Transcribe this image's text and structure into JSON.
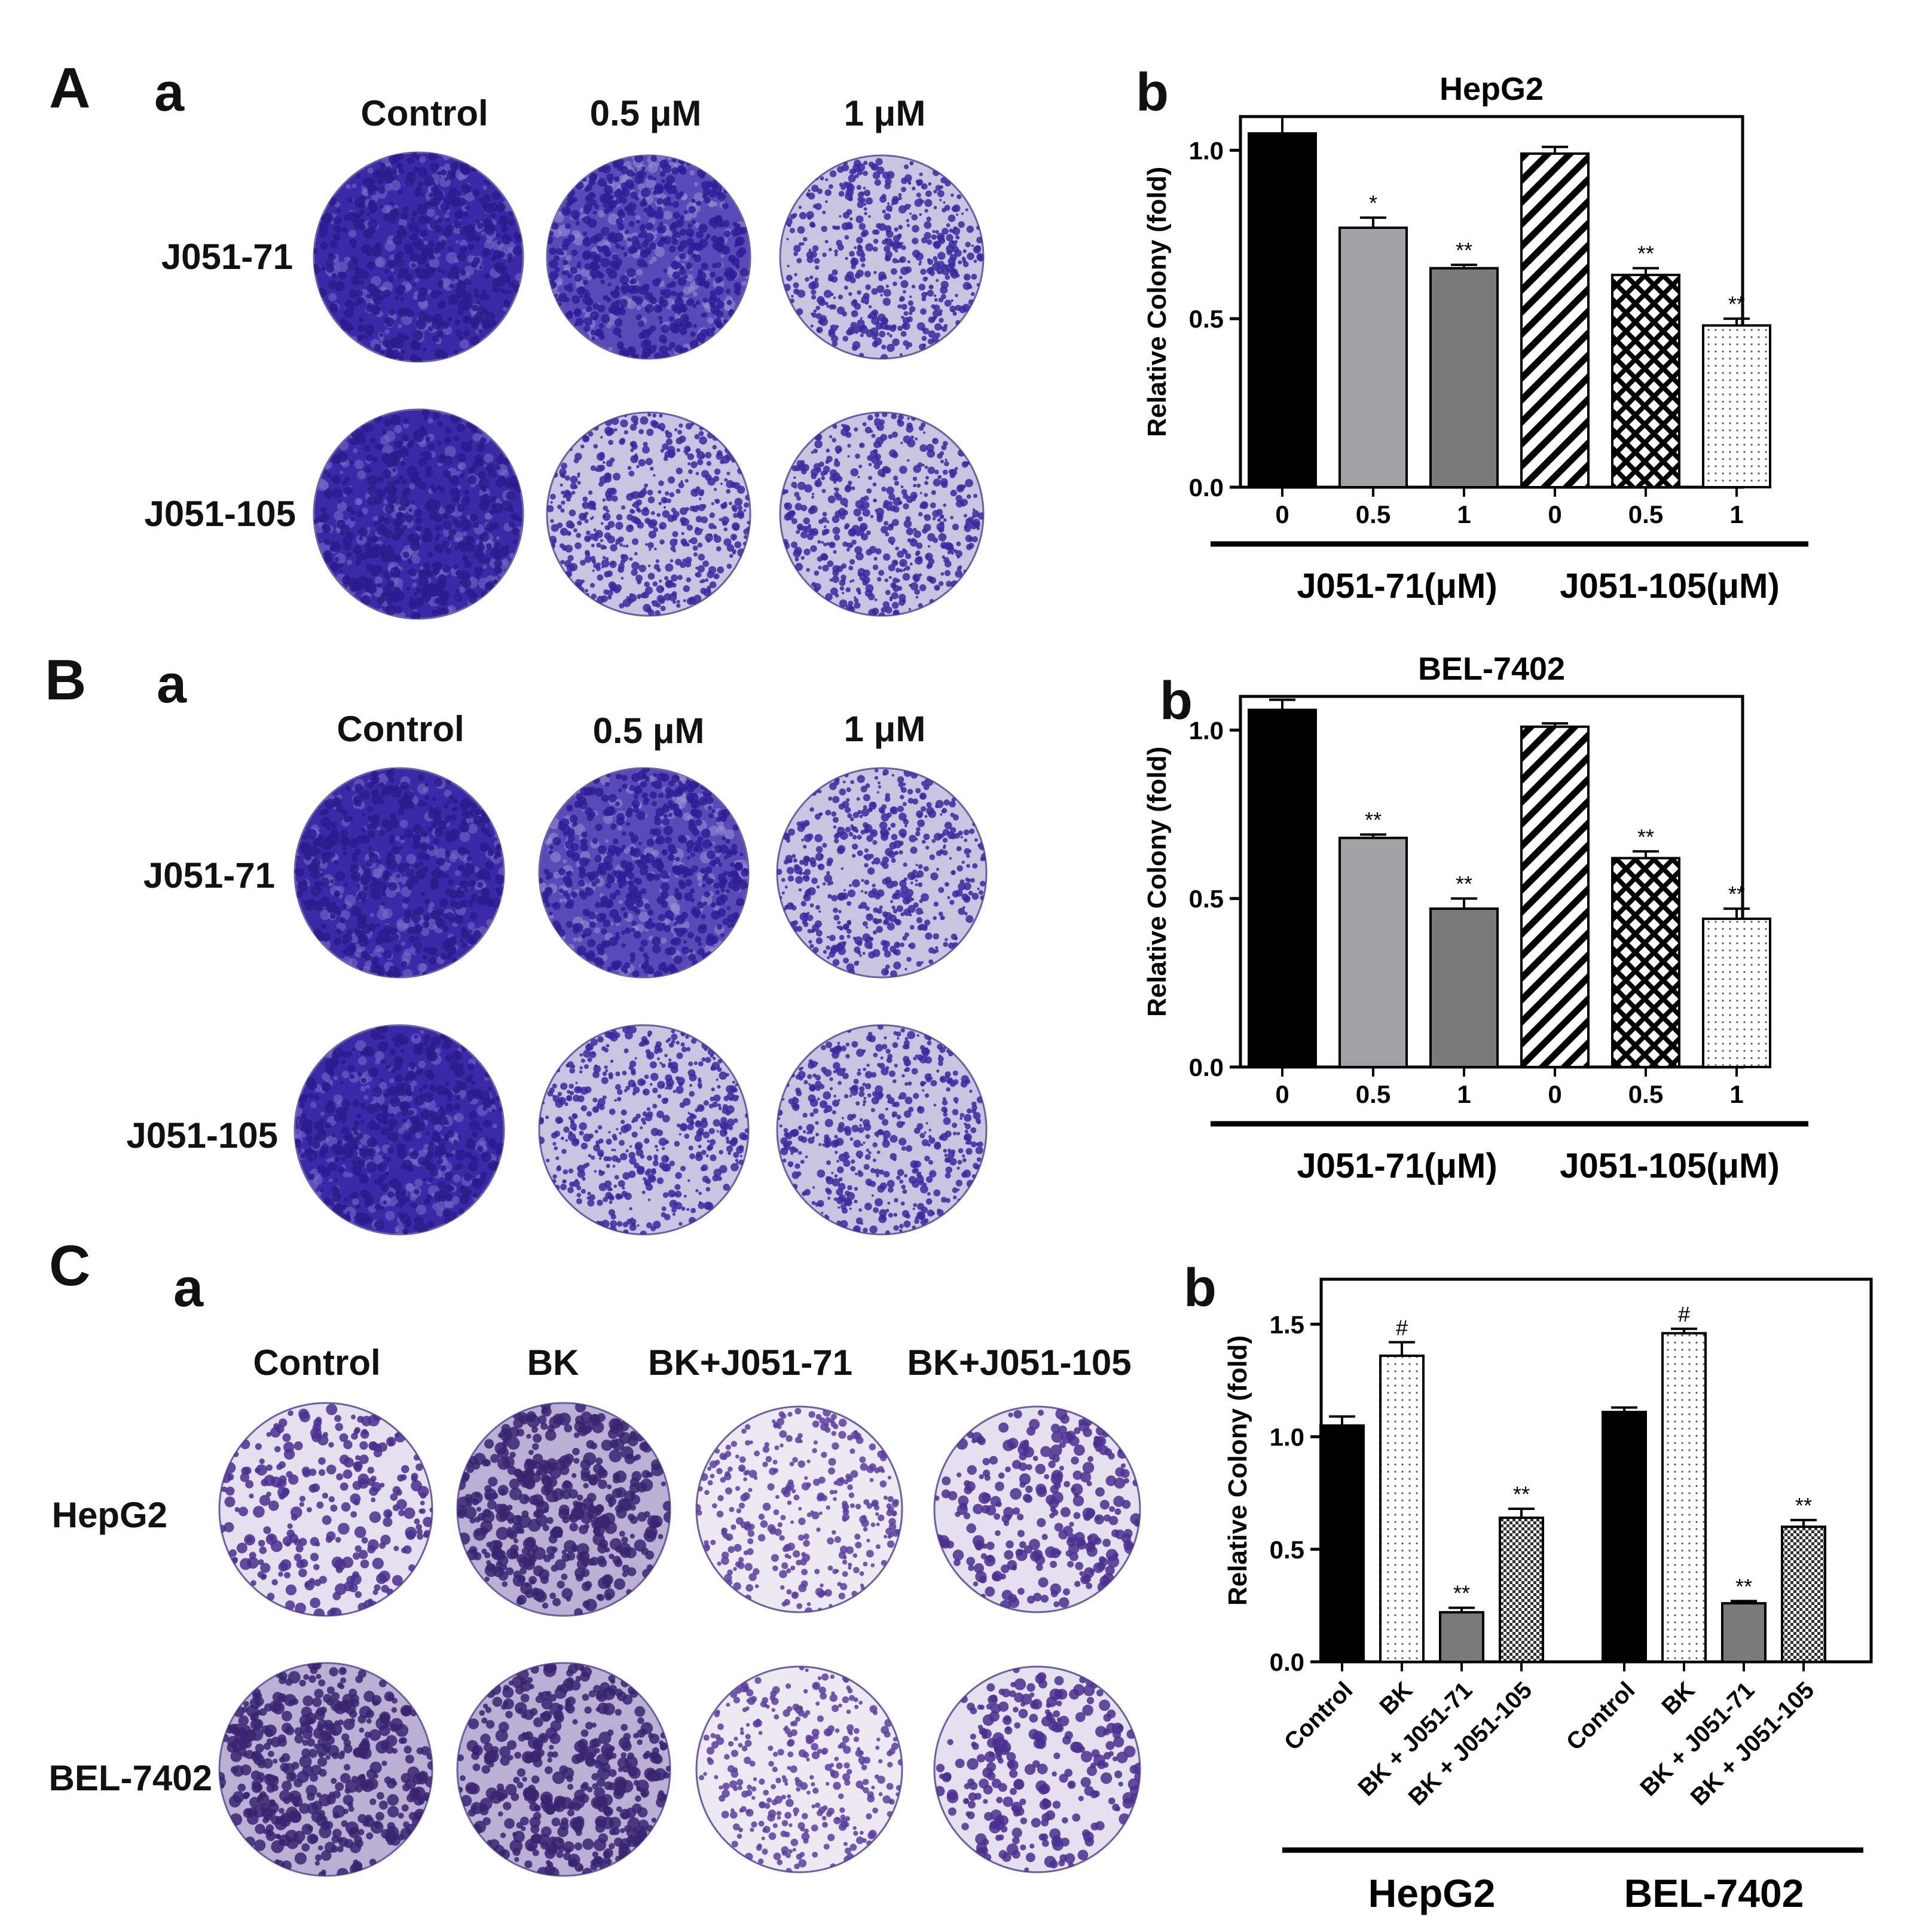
{
  "panels": {
    "A": {
      "letter": "A",
      "sub_a": "a",
      "sub_b": "b",
      "col_headers": [
        "Control",
        "0.5 μM",
        "1 μM"
      ],
      "row_headers": [
        "J051-71",
        "J051-105"
      ]
    },
    "B": {
      "letter": "B",
      "sub_a": "a",
      "sub_b": "b",
      "col_headers": [
        "Control",
        "0.5 μM",
        "1 μM"
      ],
      "row_headers": [
        "J051-71",
        "J051-105"
      ]
    },
    "C": {
      "letter": "C",
      "sub_a": "a",
      "sub_b": "b",
      "col_headers": [
        "Control",
        "BK",
        "BK+J051-71",
        "BK+J051-105"
      ],
      "row_headers": [
        "HepG2",
        "BEL-7402"
      ]
    }
  },
  "plate_colors": {
    "dense": "#3b2aa8",
    "medium": "#5a4ab8",
    "sparse_bg": "#c9c4df",
    "c_bg": "#e4e0ee",
    "c_dot": "#4a2f8f"
  },
  "chart_data": [
    {
      "type": "bar",
      "title": "HepG2",
      "ylabel": "Relative Colony (fold)",
      "ylim": [
        0,
        1.1
      ],
      "yticks": [
        "0.0",
        "0.5",
        "1.0"
      ],
      "categories": [
        "0",
        "0.5",
        "1",
        "0",
        "0.5",
        "1"
      ],
      "groups": [
        "J051-71(μM)",
        "J051-105(μM)"
      ],
      "values": [
        1.05,
        0.77,
        0.65,
        0.99,
        0.63,
        0.48
      ],
      "errors": [
        0.05,
        0.03,
        0.01,
        0.02,
        0.02,
        0.02
      ],
      "significance": [
        "",
        "*",
        "**",
        "",
        "**",
        "**"
      ],
      "patterns": [
        "black",
        "lightgray",
        "gray",
        "diagonal",
        "crosshatch",
        "dots"
      ]
    },
    {
      "type": "bar",
      "title": "BEL-7402",
      "ylabel": "Relative Colony (fold)",
      "ylim": [
        0,
        1.1
      ],
      "yticks": [
        "0.0",
        "0.5",
        "1.0"
      ],
      "categories": [
        "0",
        "0.5",
        "1",
        "0",
        "0.5",
        "1"
      ],
      "groups": [
        "J051-71(μM)",
        "J051-105(μM)"
      ],
      "values": [
        1.06,
        0.68,
        0.47,
        1.01,
        0.62,
        0.44
      ],
      "errors": [
        0.03,
        0.01,
        0.03,
        0.01,
        0.02,
        0.03
      ],
      "significance": [
        "",
        "**",
        "**",
        "",
        "**",
        "**"
      ],
      "patterns": [
        "black",
        "lightgray",
        "gray",
        "diagonal",
        "crosshatch",
        "dots"
      ]
    },
    {
      "type": "bar",
      "title": "",
      "ylabel": "Relative Colony (fold)",
      "ylim": [
        0,
        1.7
      ],
      "yticks": [
        "0.0",
        "0.5",
        "1.0",
        "1.5"
      ],
      "categories": [
        "Control",
        "BK",
        "BK + J051-71",
        "BK + J051-105",
        "Control",
        "BK",
        "BK + J051-71",
        "BK + J051-105"
      ],
      "groups": [
        "HepG2",
        "BEL-7402"
      ],
      "values": [
        1.05,
        1.36,
        0.22,
        0.64,
        1.11,
        1.46,
        0.26,
        0.6
      ],
      "errors": [
        0.04,
        0.06,
        0.02,
        0.04,
        0.02,
        0.02,
        0.01,
        0.03
      ],
      "significance": [
        "",
        "#",
        "**",
        "**",
        "",
        "#",
        "**",
        "**"
      ],
      "patterns": [
        "black",
        "dots",
        "gray",
        "checker",
        "black",
        "dots",
        "gray",
        "checker"
      ]
    }
  ]
}
